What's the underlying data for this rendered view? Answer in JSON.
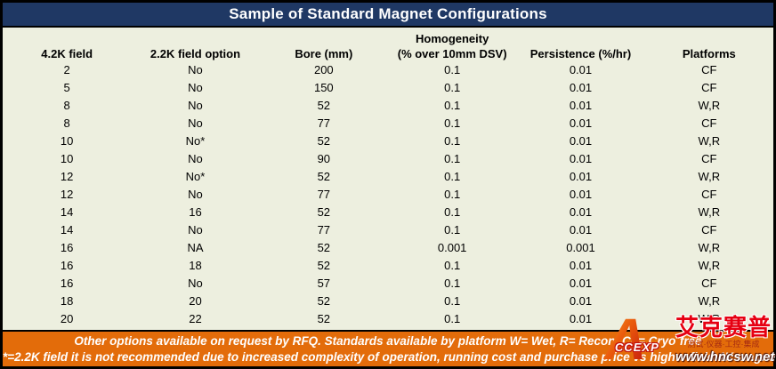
{
  "title": "Sample of Standard Magnet Configurations",
  "table": {
    "header_group": "Homogeneity",
    "columns": [
      "4.2K field",
      "2.2K field option",
      "Bore (mm)",
      "(% over 10mm DSV)",
      "Persistence (%/hr)",
      "Platforms"
    ],
    "rows": [
      [
        "2",
        "No",
        "200",
        "0.1",
        "0.01",
        "CF"
      ],
      [
        "5",
        "No",
        "150",
        "0.1",
        "0.01",
        "CF"
      ],
      [
        "8",
        "No",
        "52",
        "0.1",
        "0.01",
        "W,R"
      ],
      [
        "8",
        "No",
        "77",
        "0.1",
        "0.01",
        "CF"
      ],
      [
        "10",
        "No*",
        "52",
        "0.1",
        "0.01",
        "W,R"
      ],
      [
        "10",
        "No",
        "90",
        "0.1",
        "0.01",
        "CF"
      ],
      [
        "12",
        "No*",
        "52",
        "0.1",
        "0.01",
        "W,R"
      ],
      [
        "12",
        "No",
        "77",
        "0.1",
        "0.01",
        "CF"
      ],
      [
        "14",
        "16",
        "52",
        "0.1",
        "0.01",
        "W,R"
      ],
      [
        "14",
        "No",
        "77",
        "0.1",
        "0.01",
        "CF"
      ],
      [
        "16",
        "NA",
        "52",
        "0.001",
        "0.001",
        "W,R"
      ],
      [
        "16",
        "18",
        "52",
        "0.1",
        "0.01",
        "W,R"
      ],
      [
        "16",
        "No",
        "57",
        "0.1",
        "0.01",
        "CF"
      ],
      [
        "18",
        "20",
        "52",
        "0.1",
        "0.01",
        "W,R"
      ],
      [
        "20",
        "22",
        "52",
        "0.1",
        "0.01",
        "W,R"
      ]
    ]
  },
  "footer": {
    "line1": "Other options available on request by RFQ. Standards available by platform W= Wet, R= Recon, CF= Cryo´free",
    "line2": "*=2.2K field it is not recommended due to increased complexity of operation, running cost and purchase price vs higher field 4K magnet"
  },
  "watermark": {
    "logo_text": "CCEXP",
    "brand_cn": "艾克赛普",
    "tagline_cn": "测试·仪器·工控·集成",
    "url": "www.hncsw.net"
  },
  "colors": {
    "title_bar": "#1F3864",
    "table_background": "#EDEFDF",
    "footer_background": "#E36C0A",
    "watermark_red": "#E60012"
  }
}
